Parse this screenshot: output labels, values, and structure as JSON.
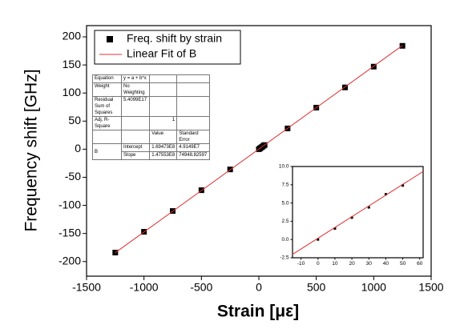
{
  "chart_data": [
    {
      "type": "scatter",
      "xlabel": "Strain [με]",
      "ylabel": "Frequency shift [GHz]",
      "xlim": [
        -1500,
        1500
      ],
      "xticks": [
        -1500,
        -1000,
        -500,
        0,
        500,
        1000,
        1500
      ],
      "ylim": [
        -226,
        220
      ],
      "yticks": [
        -200,
        -150,
        -100,
        -50,
        0,
        50,
        100,
        150,
        200
      ],
      "legend": "upper left",
      "series": [
        {
          "name": "Freq. shift by strain",
          "color": "#000000",
          "mode": "markers",
          "x": [
            -1250,
            -1000,
            -750,
            -500,
            -250,
            0,
            10,
            20,
            30,
            40,
            50,
            250,
            500,
            750,
            1000,
            1250
          ],
          "values": [
            -184,
            -147,
            -110,
            -73,
            -36,
            0,
            1.5,
            3,
            4.4,
            6.2,
            7.4,
            37,
            74,
            110,
            147,
            184
          ]
        },
        {
          "name": "Linear Fit of B",
          "color": "#e03030",
          "mode": "line",
          "x": [
            -1250,
            1250
          ],
          "values": [
            -184.27,
            184.61
          ]
        }
      ],
      "fit_table": {
        "stats": [
          [
            "Equation",
            "y = a + b*x"
          ],
          [
            "Weight",
            "No Weighting"
          ],
          [
            "Residual Sum of Squares",
            "5.4099E17"
          ],
          [
            "Adj. R-Square",
            "1"
          ]
        ],
        "columns": [
          "Value",
          "Standard Error"
        ],
        "param": "B",
        "params": [
          [
            "Intercept",
            "1.69473E8",
            "4.9149E7"
          ],
          [
            "Slope",
            "1.47553E8",
            "74948.82597"
          ]
        ]
      }
    },
    {
      "type": "scatter",
      "xlim": [
        -15,
        62
      ],
      "xticks": [
        -10,
        0,
        10,
        20,
        30,
        40,
        50,
        60
      ],
      "ylim": [
        -2.5,
        10
      ],
      "yticks": [
        {
          "value": -2.5,
          "label": "-2.5"
        },
        {
          "value": 0,
          "label": "0.0"
        },
        {
          "value": 2.5,
          "label": "2.5"
        },
        {
          "value": 5,
          "label": "5.0"
        },
        {
          "value": 7.5,
          "label": "7.5"
        },
        {
          "value": 10,
          "label": "10.0"
        }
      ],
      "series": [
        {
          "color": "#000000",
          "mode": "markers",
          "x": [
            0,
            10,
            20,
            30,
            40,
            50
          ],
          "values": [
            0,
            1.5,
            3,
            4.4,
            6.2,
            7.4
          ]
        },
        {
          "color": "#e03030",
          "mode": "line",
          "x": [
            -15,
            62
          ],
          "values": [
            -2.04,
            9.32
          ]
        }
      ]
    }
  ]
}
